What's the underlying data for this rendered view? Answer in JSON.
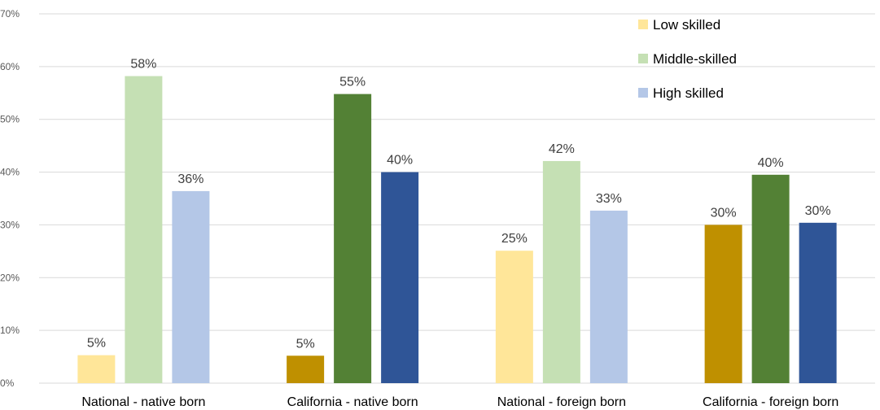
{
  "chart_data": {
    "type": "bar",
    "categories": [
      "National - native born",
      "California - native born",
      "National - foreign born",
      "California - foreign born"
    ],
    "series": [
      {
        "name": "Low skilled",
        "values": [
          5,
          5,
          25,
          30
        ]
      },
      {
        "name": "Middle-skilled",
        "values": [
          58,
          55,
          42,
          40
        ]
      },
      {
        "name": "High skilled",
        "values": [
          36,
          40,
          33,
          30
        ]
      }
    ],
    "plotted_values": [
      [
        5.3,
        5.2,
        25.1,
        30.0
      ],
      [
        58.2,
        54.8,
        42.1,
        39.5
      ],
      [
        36.4,
        40.0,
        32.7,
        30.4
      ]
    ],
    "data_labels": [
      [
        "5%",
        "5%",
        "25%",
        "30%"
      ],
      [
        "58%",
        "55%",
        "42%",
        "40%"
      ],
      [
        "36%",
        "40%",
        "33%",
        "30%"
      ]
    ],
    "colors": {
      "light": [
        "#ffe699",
        "#c5e0b4",
        "#b4c7e7"
      ],
      "dark": [
        "#bf9000",
        "#538135",
        "#2f5597"
      ]
    },
    "bar_color_variant_by_category": [
      "light",
      "dark",
      "light",
      "dark"
    ],
    "yticks": [
      "0%",
      "10%",
      "20%",
      "30%",
      "40%",
      "50%",
      "60%",
      "70%"
    ],
    "ylim": [
      0,
      70
    ],
    "grid": true,
    "legend_position": "top-right",
    "title": "",
    "xlabel": "",
    "ylabel": ""
  }
}
